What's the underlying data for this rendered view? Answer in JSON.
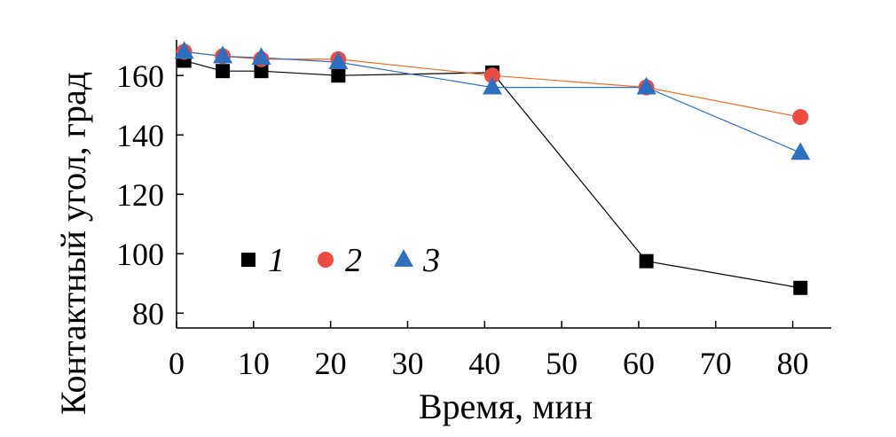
{
  "chart_data": {
    "type": "line",
    "xlabel": "Время, мин",
    "ylabel": "Контактный угол, град",
    "xlim": [
      0,
      85
    ],
    "ylim": [
      75,
      172
    ],
    "xticks": [
      0,
      10,
      20,
      30,
      40,
      50,
      60,
      70,
      80
    ],
    "yticks": [
      80,
      100,
      120,
      140,
      160
    ],
    "x_tick_labels": [
      "0",
      "10",
      "20",
      "30",
      "40",
      "50",
      "60",
      "70",
      "80"
    ],
    "y_tick_labels": [
      "80",
      "100",
      "120",
      "140",
      "160"
    ],
    "grid": false,
    "legend_position": "lower-left",
    "series": [
      {
        "name": "1",
        "marker": "square",
        "color": "#000000",
        "line_color": "#000000",
        "x": [
          1,
          6,
          11,
          21,
          41,
          61,
          81
        ],
        "y": [
          165,
          161.5,
          161.5,
          160,
          161,
          97.5,
          88.5
        ]
      },
      {
        "name": "2",
        "marker": "circle",
        "color": "#ee4b43",
        "line_color": "#ee6a2a",
        "x": [
          1,
          6,
          11,
          21,
          41,
          61,
          81
        ],
        "y": [
          168,
          166.5,
          165.5,
          165.5,
          160,
          156,
          146
        ]
      },
      {
        "name": "3",
        "marker": "triangle",
        "color": "#2e6fc0",
        "line_color": "#2e6fc0",
        "x": [
          1,
          6,
          11,
          21,
          41,
          61,
          81
        ],
        "y": [
          168,
          166.5,
          166,
          164.5,
          156,
          156,
          134
        ]
      }
    ]
  }
}
